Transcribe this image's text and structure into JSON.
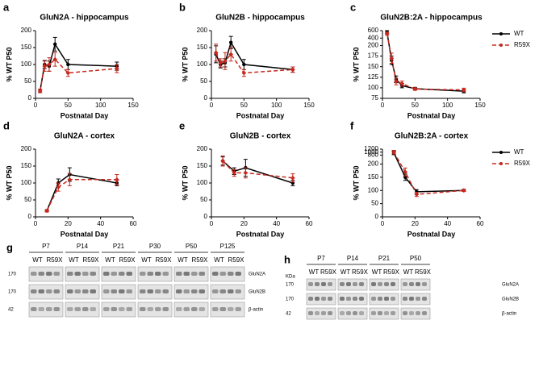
{
  "chart_data": [
    {
      "type": "line",
      "panel": "a",
      "title": "GluN2A - hippocampus",
      "xlabel": "Postnatal Day",
      "ylabel": "% WT P50",
      "x": [
        7,
        14,
        21,
        30,
        50,
        125
      ],
      "xlim": [
        0,
        150
      ],
      "xticks": [
        0,
        50,
        100,
        150
      ],
      "ylim": [
        0,
        200
      ],
      "yticks": [
        0,
        50,
        100,
        150,
        200
      ],
      "series": [
        {
          "name": "WT",
          "color": "#000000",
          "dashed": false,
          "values": [
            22,
            100,
            95,
            160,
            100,
            95
          ],
          "errors": [
            5,
            12,
            15,
            20,
            15,
            12
          ]
        },
        {
          "name": "R59X",
          "color": "#c8281e",
          "dashed": true,
          "values": [
            22,
            95,
            100,
            115,
            75,
            88
          ],
          "errors": [
            5,
            15,
            20,
            20,
            10,
            12
          ]
        }
      ]
    },
    {
      "type": "line",
      "panel": "b",
      "title": "GluN2B - hippocampus",
      "xlabel": "Postnatal Day",
      "ylabel": "% WT P50",
      "x": [
        7,
        14,
        21,
        30,
        50,
        125
      ],
      "xlim": [
        0,
        150
      ],
      "xticks": [
        0,
        50,
        100,
        150
      ],
      "ylim": [
        0,
        200
      ],
      "yticks": [
        0,
        50,
        100,
        150,
        200
      ],
      "series": [
        {
          "name": "WT",
          "color": "#000000",
          "dashed": false,
          "values": [
            130,
            100,
            105,
            165,
            100,
            85
          ],
          "errors": [
            25,
            10,
            12,
            18,
            15,
            8
          ]
        },
        {
          "name": "R59X",
          "color": "#c8281e",
          "dashed": true,
          "values": [
            135,
            105,
            110,
            130,
            75,
            85
          ],
          "errors": [
            25,
            12,
            25,
            20,
            10,
            8
          ]
        }
      ]
    },
    {
      "type": "line",
      "panel": "c",
      "title": "GluN2B:2A - hippocampus",
      "xlabel": "Postnatal Day",
      "ylabel": "% WT P50",
      "x": [
        7,
        14,
        21,
        30,
        50,
        125
      ],
      "xlim": [
        0,
        150
      ],
      "xticks": [
        0,
        50,
        100,
        150
      ],
      "ylim": [
        75,
        600
      ],
      "yticks": [
        75,
        100,
        125,
        150,
        175,
        200,
        400,
        600
      ],
      "y_break": 200,
      "legend": "right",
      "series": [
        {
          "name": "WT",
          "color": "#000000",
          "dashed": false,
          "values": [
            560,
            165,
            120,
            105,
            98,
            92
          ],
          "errors": [
            40,
            10,
            8,
            5,
            3,
            4
          ]
        },
        {
          "name": "R59X",
          "color": "#c8281e",
          "dashed": true,
          "values": [
            520,
            170,
            115,
            110,
            97,
            95
          ],
          "errors": [
            40,
            12,
            8,
            6,
            3,
            4
          ]
        }
      ]
    },
    {
      "type": "line",
      "panel": "d",
      "title": "GluN2A - cortex",
      "xlabel": "Postnatal Day",
      "ylabel": "% WT P50",
      "x": [
        7,
        14,
        21,
        50
      ],
      "xlim": [
        0,
        60
      ],
      "xticks": [
        0,
        20,
        40,
        60
      ],
      "ylim": [
        0,
        200
      ],
      "yticks": [
        0,
        50,
        100,
        150,
        200
      ],
      "series": [
        {
          "name": "WT",
          "color": "#000000",
          "dashed": false,
          "values": [
            18,
            100,
            125,
            100
          ],
          "errors": [
            3,
            12,
            20,
            8
          ]
        },
        {
          "name": "R59X",
          "color": "#c8281e",
          "dashed": true,
          "values": [
            18,
            88,
            110,
            110
          ],
          "errors": [
            3,
            12,
            18,
            15
          ]
        }
      ]
    },
    {
      "type": "line",
      "panel": "e",
      "title": "GluN2B - cortex",
      "xlabel": "Postnatal Day",
      "ylabel": "% WT P50",
      "x": [
        7,
        14,
        21,
        50
      ],
      "xlim": [
        0,
        60
      ],
      "xticks": [
        0,
        20,
        40,
        60
      ],
      "ylim": [
        0,
        200
      ],
      "yticks": [
        0,
        50,
        100,
        150,
        200
      ],
      "series": [
        {
          "name": "WT",
          "color": "#000000",
          "dashed": false,
          "values": [
            165,
            135,
            145,
            100
          ],
          "errors": [
            12,
            10,
            25,
            8
          ]
        },
        {
          "name": "R59X",
          "color": "#c8281e",
          "dashed": true,
          "values": [
            165,
            130,
            130,
            115
          ],
          "errors": [
            15,
            10,
            15,
            12
          ]
        }
      ]
    },
    {
      "type": "line",
      "panel": "f",
      "title": "GluN2B:2A - cortex",
      "xlabel": "Postnatal Day",
      "ylabel": "% WT P50",
      "x": [
        7,
        14,
        21,
        50
      ],
      "xlim": [
        0,
        60
      ],
      "xticks": [
        0,
        20,
        40,
        60
      ],
      "ylim": [
        0,
        1200
      ],
      "yticks": [
        0,
        50,
        100,
        150,
        200,
        800,
        1000,
        1200
      ],
      "y_break": 200,
      "legend": "right",
      "series": [
        {
          "name": "WT",
          "color": "#000000",
          "dashed": false,
          "values": [
            950,
            150,
            95,
            100
          ],
          "errors": [
            120,
            12,
            8,
            4
          ]
        },
        {
          "name": "R59X",
          "color": "#c8281e",
          "dashed": true,
          "values": [
            1000,
            170,
            85,
            100
          ],
          "errors": [
            120,
            15,
            8,
            4
          ]
        }
      ]
    }
  ],
  "blots": [
    {
      "panel": "g",
      "timepoints": [
        "P7",
        "P14",
        "P21",
        "P30",
        "P50",
        "P125"
      ],
      "genotypes": [
        "WT",
        "R59X"
      ],
      "weights": [
        "170",
        "170",
        "42"
      ],
      "proteins": [
        "GluN2A",
        "GluN2B",
        "β-actin"
      ]
    },
    {
      "panel": "h",
      "unit": "KDa",
      "timepoints": [
        "P7",
        "P14",
        "P21",
        "P50"
      ],
      "genotypes": [
        "WT",
        "R59X"
      ],
      "weights": [
        "170",
        "170",
        "42"
      ],
      "proteins": [
        "GluN2A",
        "GluN2B",
        "β-actin"
      ]
    }
  ]
}
